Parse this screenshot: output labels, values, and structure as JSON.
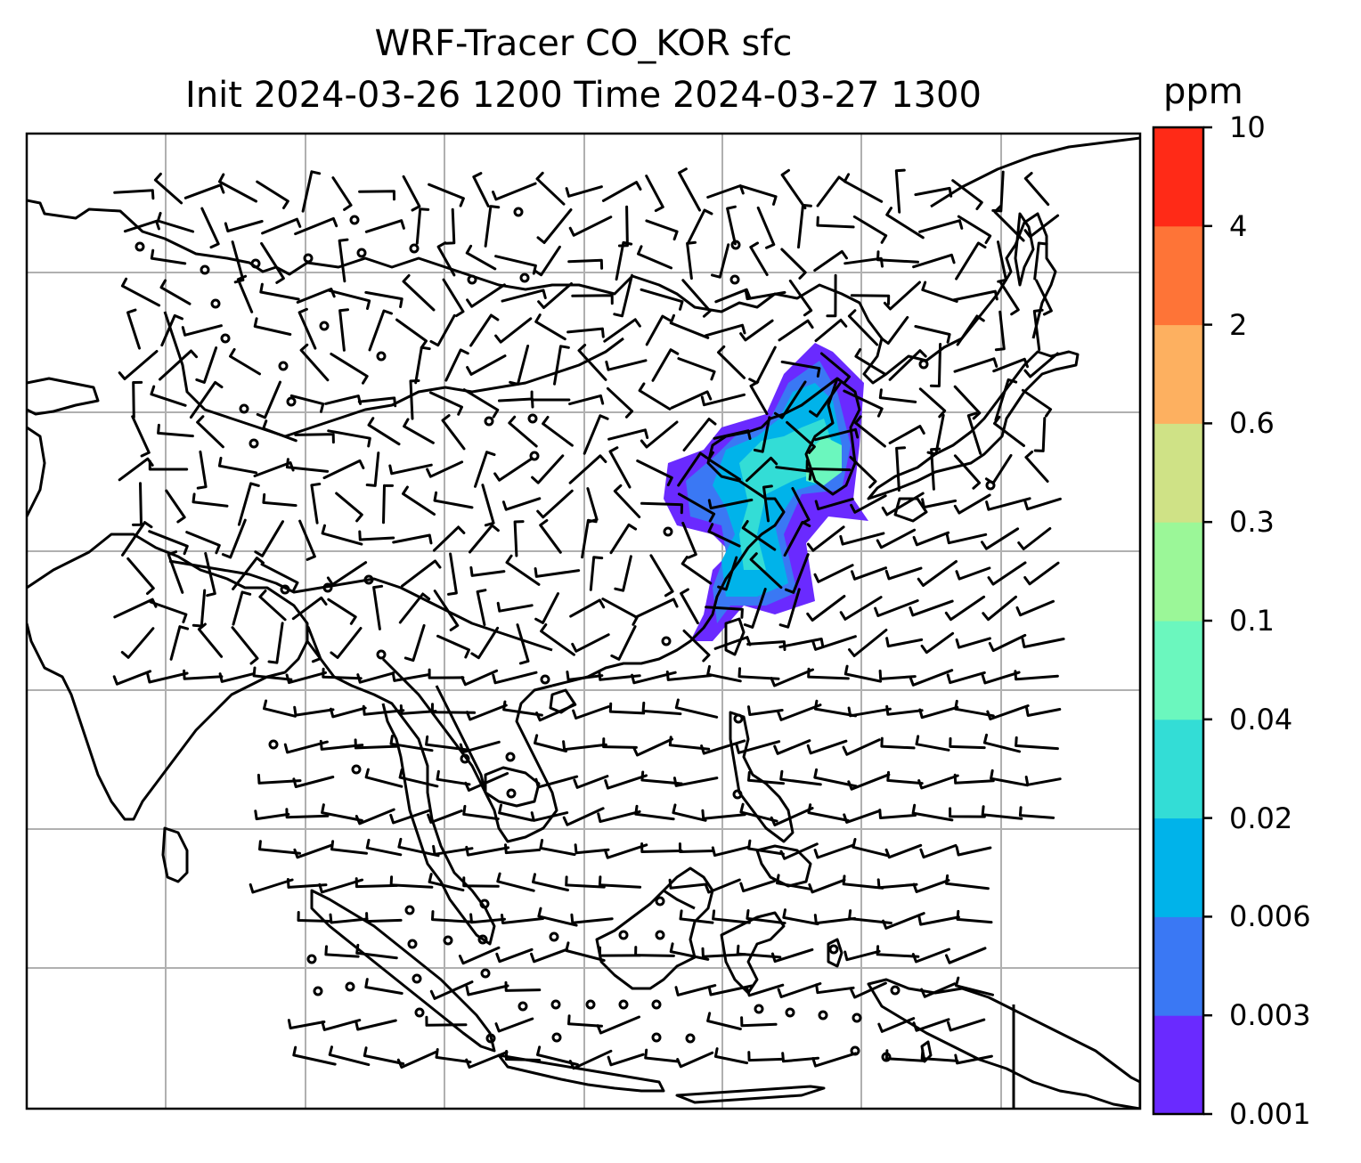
{
  "title": {
    "line1": "WRF-Tracer CO_KOR sfc",
    "line2": "Init 2024-03-26 1200 Time 2024-03-27 1300"
  },
  "colorbar": {
    "unit": "ppm",
    "levels": [
      "0.001",
      "0.003",
      "0.006",
      "0.02",
      "0.04",
      "0.1",
      "0.3",
      "0.6",
      "2",
      "4",
      "10"
    ],
    "colors": [
      "#6a2aff",
      "#3a78f4",
      "#00b3ea",
      "#33ddd6",
      "#6bf7be",
      "#9bf798",
      "#cfe286",
      "#fdb060",
      "#fe7437",
      "#ff2a17"
    ]
  },
  "map": {
    "layers": [
      "coastlines",
      "lat-lon gridlines",
      "wind barbs",
      "CO tracer plume"
    ],
    "plume_location": "Korean Peninsula / Yellow Sea",
    "colors": {
      "coast": "#000000",
      "grid": "#b0b0b0",
      "barb": "#000000"
    }
  }
}
